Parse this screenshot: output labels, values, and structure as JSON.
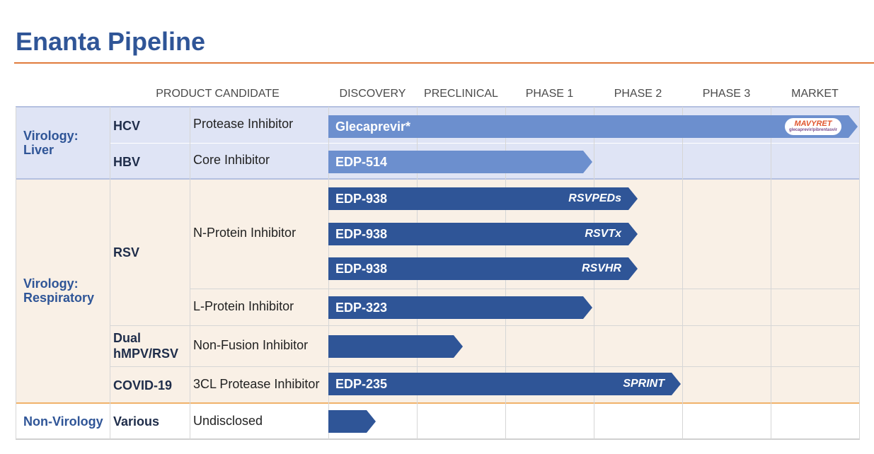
{
  "title": "Enanta Pipeline",
  "headers": {
    "product_candidate": "PRODUCT CANDIDATE",
    "stages": [
      "DISCOVERY",
      "PRECLINICAL",
      "PHASE 1",
      "PHASE 2",
      "PHASE 3",
      "MARKET"
    ]
  },
  "groups": {
    "liver": "Virology:\nLiver",
    "respiratory": "Virology:\nRespiratory",
    "non_virology": "Non-Virology"
  },
  "rows": {
    "hcv": {
      "indication": "HCV",
      "mechanism": "Protease Inhibitor",
      "program": "Glecaprevir*",
      "product": "MAVYRET",
      "product_sub": "glecaprevir/pibrentasvir",
      "progress_stage": "MARKET"
    },
    "hbv": {
      "indication": "HBV",
      "mechanism": "Core Inhibitor",
      "program": "EDP-514",
      "progress_stage": "PHASE 1"
    },
    "rsv": {
      "indication": "RSV"
    },
    "rsv1": {
      "mechanism": "N-Protein Inhibitor",
      "program": "EDP-938",
      "trial": "RSVPEDs",
      "progress_stage": "PHASE 2"
    },
    "rsv2": {
      "program": "EDP-938",
      "trial": "RSVTx",
      "progress_stage": "PHASE 2"
    },
    "rsv3": {
      "program": "EDP-938",
      "trial": "RSVHR",
      "progress_stage": "PHASE 2"
    },
    "rsv4": {
      "mechanism": "L-Protein Inhibitor",
      "program": "EDP-323",
      "progress_stage": "PHASE 1"
    },
    "hmpv": {
      "indication": "Dual\nhMPV/RSV",
      "mechanism": "Non-Fusion Inhibitor",
      "program": "",
      "progress_stage": "PRECLINICAL"
    },
    "covid": {
      "indication": "COVID-19",
      "mechanism": "3CL Protease Inhibitor",
      "program": "EDP-235",
      "trial": "SPRINT",
      "progress_stage": "PHASE 2"
    },
    "various": {
      "indication": "Various",
      "mechanism": "Undisclosed",
      "program": "",
      "progress_stage": "DISCOVERY"
    }
  },
  "colors": {
    "title": "#2f5597",
    "rule": "#e07b3c",
    "liver_band": "#dfe4f5",
    "respiratory_band": "#f9f0e6",
    "bar_light": "#6c8fce",
    "bar_dark": "#2f5597"
  }
}
